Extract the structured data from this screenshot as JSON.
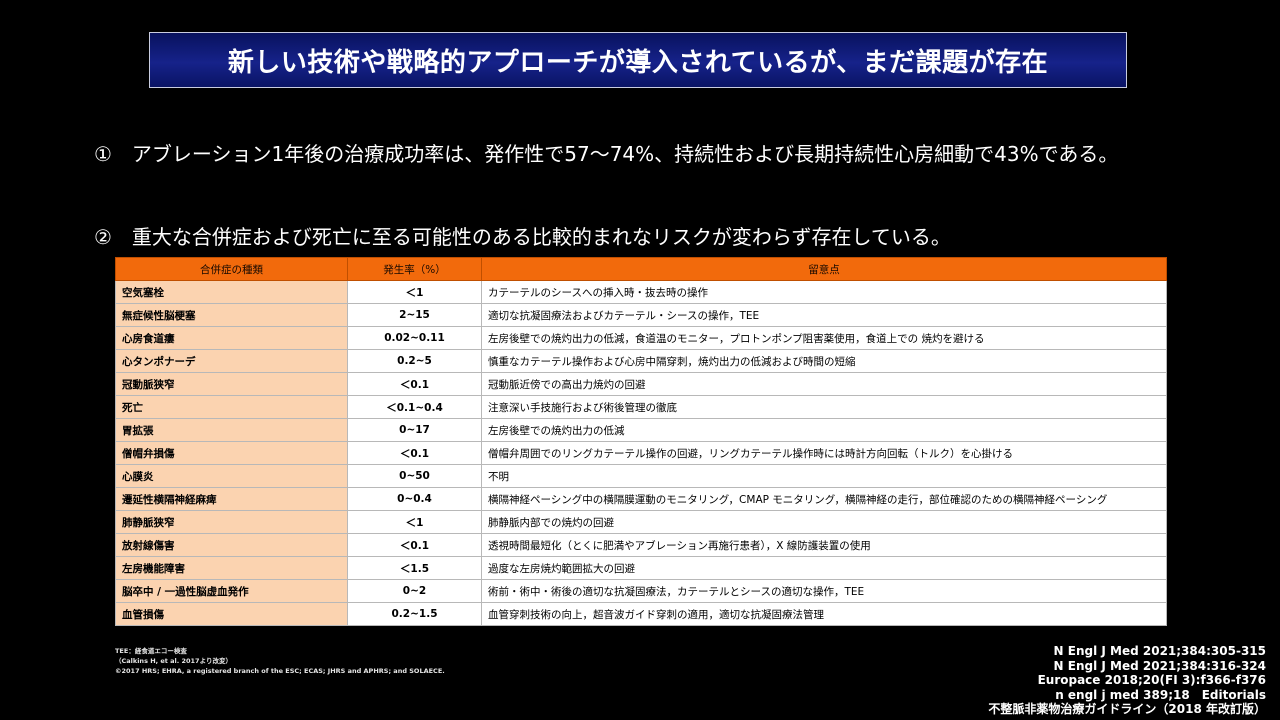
{
  "title": "新しい技術や戦略的アプローチが導入されているが、まだ課題が存在",
  "bullets": [
    "①　アブレーション1年後の治療成功率は、発作性で57～74%、持続性および長期持続性心房細動で43%である。",
    "②　重大な合併症および死亡に至る可能性のある比較的まれなリスクが変わらず存在している。"
  ],
  "table": {
    "headers": [
      "合併症の種類",
      "発生率（%）",
      "留意点"
    ],
    "rows": [
      {
        "name": "空気塞栓",
        "rate": "＜1",
        "note": "カテーテルのシースへの挿入時・抜去時の操作"
      },
      {
        "name": "無症候性脳梗塞",
        "rate": "2~15",
        "note": "適切な抗凝固療法およびカテーテル・シースの操作，TEE"
      },
      {
        "name": "心房食道瘻",
        "rate": "0.02~0.11",
        "note": "左房後壁での焼灼出力の低減，食道温のモニター，プロトンポンプ阻害薬使用，食道上での 焼灼を避ける"
      },
      {
        "name": "心タンポナーデ",
        "rate": "0.2~5",
        "note": "慎重なカテーテル操作および心房中隔穿刺，焼灼出力の低減および時間の短縮"
      },
      {
        "name": "冠動脈狭窄",
        "rate": "＜0.1",
        "note": "冠動脈近傍での高出力焼灼の回避"
      },
      {
        "name": "死亡",
        "rate": "＜0.1~0.4",
        "note": "注意深い手技施行および術後管理の徹底"
      },
      {
        "name": "胃拡張",
        "rate": "0~17",
        "note": "左房後壁での焼灼出力の低減"
      },
      {
        "name": "僧帽弁損傷",
        "rate": "＜0.1",
        "note": "僧帽弁周囲でのリングカテーテル操作の回避，リングカテーテル操作時には時計方向回転（トルク）を心掛ける"
      },
      {
        "name": "心膜炎",
        "rate": "0~50",
        "note": "不明"
      },
      {
        "name": "遷延性横隔神経麻痺",
        "rate": "0~0.4",
        "note": "横隔神経ペーシング中の横隔膜運動のモニタリング，CMAP モニタリング，横隔神経の走行，部位確認のための横隔神経ペーシング"
      },
      {
        "name": "肺静脈狭窄",
        "rate": "＜1",
        "note": "肺静脈内部での焼灼の回避"
      },
      {
        "name": "放射線傷害",
        "rate": "＜0.1",
        "note": "透視時間最短化（とくに肥満やアブレーション再施行患者），X 線防護装置の使用"
      },
      {
        "name": "左房機能障害",
        "rate": "＜1.5",
        "note": "過度な左房焼灼範囲拡大の回避"
      },
      {
        "name": "脳卒中 / 一過性脳虚血発作",
        "rate": "0~2",
        "note": "術前・術中・術後の適切な抗凝固療法，カテーテルとシースの適切な操作，TEE"
      },
      {
        "name": "血管損傷",
        "rate": "0.2~1.5",
        "note": "血管穿刺技術の向上，超音波ガイド穿刺の適用，適切な抗凝固療法管理"
      }
    ]
  },
  "footnote": [
    "TEE：経食道エコー検査",
    "（Calkins H, et al. 2017より改変）",
    "©2017 HRS; EHRA, a registered branch of the ESC; ECAS; JHRS and APHRS; and SOLAECE."
  ],
  "references": [
    "N Engl J Med 2021;384:305-315",
    "N Engl J Med 2021;384:316-324",
    "Europace 2018;20(FI 3):f366-f376",
    "n engl j med 389;18　Editorials",
    "不整脈非薬物治療ガイドライン（2018 年改訂版）"
  ]
}
